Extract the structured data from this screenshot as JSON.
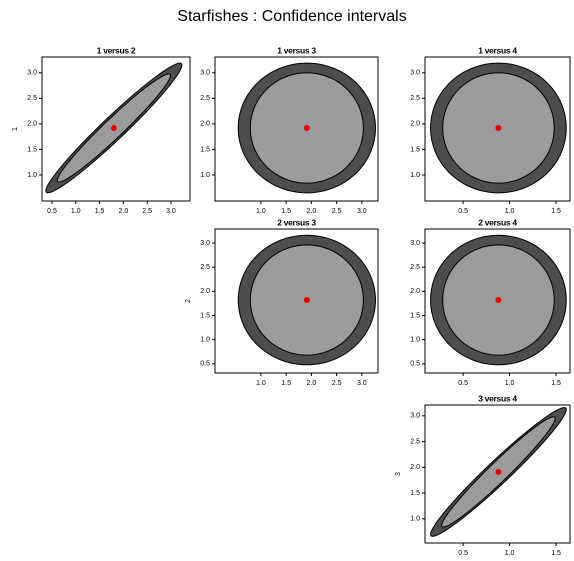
{
  "title": "Starfishes : Confidence intervals",
  "chart_data": [
    {
      "type": "ellipse",
      "title": "1 versus 2",
      "ylabel": "1",
      "xlim": [
        0.29,
        3.4
      ],
      "ylim": [
        0.49,
        3.31
      ],
      "xticks": [
        0.5,
        {
          "value": 1,
          "label": "1.0"
        },
        1.5,
        {
          "value": 2,
          "label": "2.0"
        },
        2.5,
        {
          "value": 3,
          "label": "3.0"
        }
      ],
      "yticks": [
        {
          "value": 1,
          "label": "1.0"
        },
        1.5,
        {
          "value": 2,
          "label": "2.0"
        },
        2.5,
        {
          "value": 3,
          "label": "3.0"
        }
      ],
      "center": {
        "x": 1.8,
        "y": 1.92
      },
      "point_color": "#ee0000",
      "ellipses": [
        {
          "sx": 1.43,
          "sy": 1.27,
          "rho": 0.97,
          "color": "#4d4d4d"
        },
        {
          "sx": 1.19,
          "sy": 1.06,
          "rho": 0.97,
          "color": "#9b9b9b"
        }
      ]
    },
    {
      "type": "ellipse",
      "title": "1 versus 3",
      "xlim": [
        0.09,
        3.32
      ],
      "ylim": [
        0.49,
        3.31
      ],
      "xticks": [
        {
          "value": 1,
          "label": "1.0"
        },
        1.5,
        {
          "value": 2,
          "label": "2.0"
        },
        2.5,
        {
          "value": 3,
          "label": "3.0"
        }
      ],
      "yticks": [
        {
          "value": 1,
          "label": "1.0"
        },
        1.5,
        {
          "value": 2,
          "label": "2.0"
        },
        2.5,
        {
          "value": 3,
          "label": "3.0"
        }
      ],
      "center": {
        "x": 1.91,
        "y": 1.92
      },
      "point_color": "#ee0000",
      "ellipses": [
        {
          "sx": 1.36,
          "sy": 1.27,
          "rho": 0,
          "color": "#4d4d4d"
        },
        {
          "sx": 1.12,
          "sy": 1.08,
          "rho": 0,
          "color": "#9b9b9b"
        }
      ]
    },
    {
      "type": "ellipse",
      "title": "1 versus 4",
      "xlim": [
        0.09,
        1.65
      ],
      "ylim": [
        0.49,
        3.31
      ],
      "xticks": [
        0.5,
        {
          "value": 1,
          "label": "1.0"
        },
        1.5
      ],
      "yticks": [
        {
          "value": 1,
          "label": "1.0"
        },
        1.5,
        {
          "value": 2,
          "label": "2.0"
        },
        2.5,
        {
          "value": 3,
          "label": "3.0"
        }
      ],
      "center": {
        "x": 0.88,
        "y": 1.92
      },
      "point_color": "#ee0000",
      "ellipses": [
        {
          "sx": 0.73,
          "sy": 1.27,
          "rho": 0,
          "color": "#4d4d4d"
        },
        {
          "sx": 0.6,
          "sy": 1.08,
          "rho": 0,
          "color": "#9b9b9b"
        }
      ]
    },
    {
      "type": "ellipse",
      "title": "2 versus 3",
      "ylabel": "2",
      "xlim": [
        0.09,
        3.32
      ],
      "ylim": [
        0.31,
        3.29
      ],
      "xticks": [
        {
          "value": 1,
          "label": "1.0"
        },
        1.5,
        {
          "value": 2,
          "label": "2.0"
        },
        2.5,
        {
          "value": 3,
          "label": "3.0"
        }
      ],
      "yticks": [
        0.5,
        {
          "value": 1,
          "label": "1.0"
        },
        1.5,
        {
          "value": 2,
          "label": "2.0"
        },
        2.5,
        {
          "value": 3,
          "label": "3.0"
        }
      ],
      "center": {
        "x": 1.91,
        "y": 1.82
      },
      "point_color": "#ee0000",
      "ellipses": [
        {
          "sx": 1.36,
          "sy": 1.34,
          "rho": 0,
          "color": "#4d4d4d"
        },
        {
          "sx": 1.12,
          "sy": 1.14,
          "rho": 0,
          "color": "#9b9b9b"
        }
      ]
    },
    {
      "type": "ellipse",
      "title": "2 versus 4",
      "xlim": [
        0.09,
        1.65
      ],
      "ylim": [
        0.31,
        3.29
      ],
      "xticks": [
        0.5,
        {
          "value": 1,
          "label": "1.0"
        },
        1.5
      ],
      "yticks": [
        0.5,
        {
          "value": 1,
          "label": "1.0"
        },
        1.5,
        {
          "value": 2,
          "label": "2.0"
        },
        2.5,
        {
          "value": 3,
          "label": "3.0"
        }
      ],
      "center": {
        "x": 0.88,
        "y": 1.82
      },
      "point_color": "#ee0000",
      "ellipses": [
        {
          "sx": 0.73,
          "sy": 1.34,
          "rho": 0,
          "color": "#4d4d4d"
        },
        {
          "sx": 0.6,
          "sy": 1.14,
          "rho": 0,
          "color": "#9b9b9b"
        }
      ]
    },
    {
      "type": "ellipse",
      "title": "3 versus 4",
      "ylabel": "3",
      "xlim": [
        0.09,
        1.65
      ],
      "ylim": [
        0.53,
        3.21
      ],
      "xticks": [
        0.5,
        {
          "value": 1,
          "label": "1.0"
        },
        1.5
      ],
      "yticks": [
        {
          "value": 1,
          "label": "1.0"
        },
        1.5,
        {
          "value": 2,
          "label": "2.0"
        },
        2.5,
        {
          "value": 3,
          "label": "3.0"
        }
      ],
      "center": {
        "x": 0.88,
        "y": 1.91
      },
      "point_color": "#ee0000",
      "ellipses": [
        {
          "sx": 0.73,
          "sy": 1.25,
          "rho": 0.97,
          "color": "#4d4d4d"
        },
        {
          "sx": 0.61,
          "sy": 1.07,
          "rho": 0.97,
          "color": "#9b9b9b"
        }
      ]
    }
  ]
}
